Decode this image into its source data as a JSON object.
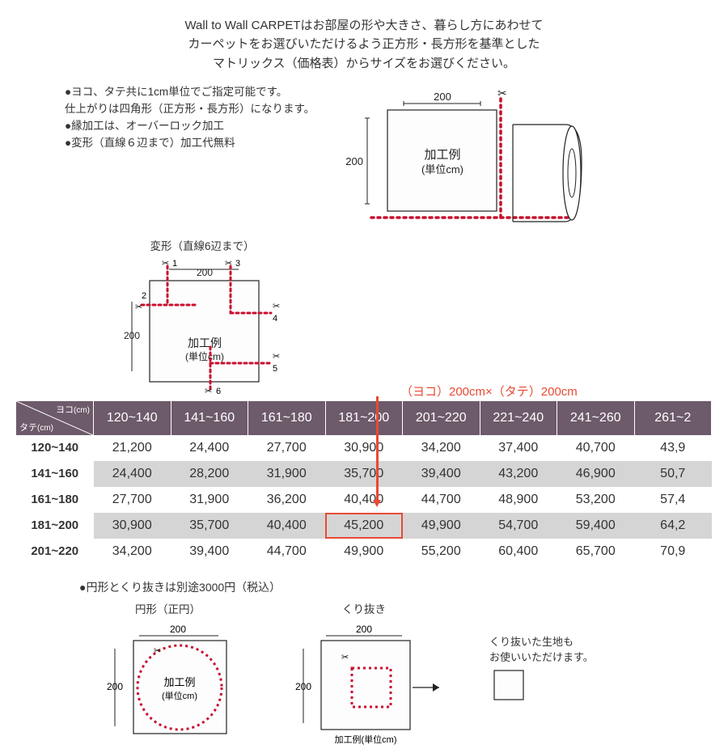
{
  "intro": {
    "line1": "Wall to Wall CARPETはお部屋の形や大きさ、暮らし方にあわせて",
    "line2": "カーペットをお選びいただけるよう正方形・長方形を基準とした",
    "line3": "マトリックス（価格表）からサイズをお選びください。"
  },
  "bullets": {
    "b1": "●ヨコ、タテ共に1cm単位でご指定可能です。",
    "b2": "仕上がりは四角形（正方形・長方形）になります。",
    "b3": "●縁加工は、オーバーロック加工",
    "b4": "●変形（直線６辺まで）加工代無料"
  },
  "figLabels": {
    "hex": "変形（直線6辺まで）",
    "example": "加工例",
    "unit": "（単位cm）",
    "dim": "200",
    "circle": "円形（正円）",
    "cutout": "くり抜き"
  },
  "highlight": "（ヨコ）200cm×（タテ）200cm",
  "table": {
    "cornerYoko": "ヨコ",
    "cornerTate": "タテ",
    "cornerUnit": "(cm)",
    "columns": [
      "120~140",
      "141~160",
      "161~180",
      "181~200",
      "201~220",
      "221~240",
      "241~260",
      "261~2"
    ],
    "rowHeaders": [
      "120~140",
      "141~160",
      "161~180",
      "181~200",
      "201~220"
    ],
    "rows": [
      [
        "21,200",
        "24,400",
        "27,700",
        "30,900",
        "34,200",
        "37,400",
        "40,700",
        "43,9"
      ],
      [
        "24,400",
        "28,200",
        "31,900",
        "35,700",
        "39,400",
        "43,200",
        "46,900",
        "50,7"
      ],
      [
        "27,700",
        "31,900",
        "36,200",
        "40,400",
        "44,700",
        "48,900",
        "53,200",
        "57,4"
      ],
      [
        "30,900",
        "35,700",
        "40,400",
        "45,200",
        "49,900",
        "54,700",
        "59,400",
        "64,2"
      ],
      [
        "34,200",
        "39,400",
        "44,700",
        "49,900",
        "55,200",
        "60,400",
        "65,700",
        "70,9"
      ]
    ],
    "highlightRow": 3,
    "highlightCol": 3,
    "headerBg": "#6d5a6a",
    "altBg": "#d5d5d5",
    "accent": "#e84a33"
  },
  "note": "●円形とくり抜きは別途3000円（税込）",
  "sideNote": {
    "l1": "くり抜いた生地も",
    "l2": "お使いいただけます。"
  }
}
